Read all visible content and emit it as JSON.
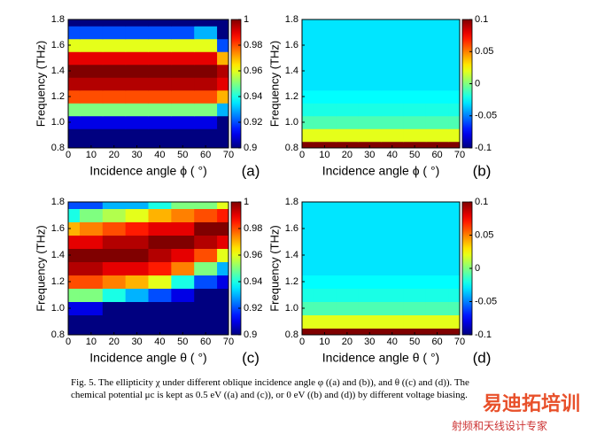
{
  "chart_data": [
    {
      "type": "heatmap",
      "panel": "(a)",
      "xlabel": "Incidence angle ϕ ( °)",
      "ylabel": "Frequency (THz)",
      "colormap": "jet",
      "x": [
        0,
        10,
        20,
        30,
        40,
        50,
        60,
        70
      ],
      "y": [
        0.8,
        0.9,
        1.0,
        1.1,
        1.2,
        1.3,
        1.4,
        1.5,
        1.6,
        1.7,
        1.8
      ],
      "z": [
        [
          0.9,
          0.9,
          0.9,
          0.9,
          0.9,
          0.9,
          0.9,
          0.9
        ],
        [
          0.9,
          0.9,
          0.9,
          0.9,
          0.9,
          0.9,
          0.9,
          0.9
        ],
        [
          0.91,
          0.91,
          0.91,
          0.91,
          0.91,
          0.91,
          0.91,
          0.9
        ],
        [
          0.95,
          0.95,
          0.95,
          0.95,
          0.95,
          0.95,
          0.95,
          0.93
        ],
        [
          0.98,
          0.98,
          0.98,
          0.98,
          0.98,
          0.98,
          0.98,
          0.97
        ],
        [
          0.995,
          0.995,
          0.995,
          0.995,
          0.995,
          0.995,
          0.995,
          0.99
        ],
        [
          1,
          1,
          1,
          1,
          1,
          1,
          1,
          0.995
        ],
        [
          0.99,
          0.99,
          0.99,
          0.99,
          0.99,
          0.99,
          0.99,
          0.97
        ],
        [
          0.96,
          0.96,
          0.96,
          0.96,
          0.96,
          0.96,
          0.96,
          0.92
        ],
        [
          0.92,
          0.92,
          0.92,
          0.92,
          0.92,
          0.92,
          0.93,
          0.9
        ],
        [
          0.9,
          0.9,
          0.9,
          0.9,
          0.9,
          0.9,
          0.9,
          0.9
        ]
      ],
      "xlim": [
        0,
        70
      ],
      "ylim": [
        0.8,
        1.8
      ],
      "xticks": [
        0,
        10,
        20,
        30,
        40,
        50,
        60,
        70
      ],
      "yticks": [
        0.8,
        {
          "value": 1,
          "label": "1.0"
        },
        1.2,
        1.4,
        1.6,
        1.8
      ],
      "clim": [
        0.9,
        1
      ],
      "cticks": [
        0.9,
        0.92,
        0.94,
        0.96,
        0.98,
        1
      ]
    },
    {
      "type": "heatmap",
      "panel": "(b)",
      "xlabel": "Incidence angle ϕ ( °)",
      "ylabel": "Frequency (THz)",
      "colormap": "jet",
      "x": [
        0,
        10,
        20,
        30,
        40,
        50,
        60,
        70
      ],
      "y": [
        0.8,
        0.9,
        1.0,
        1.1,
        1.2,
        1.3,
        1.4,
        1.5,
        1.6,
        1.7,
        1.8
      ],
      "z": [
        [
          0.1,
          0.1,
          0.1,
          0.1,
          0.1,
          0.1,
          0.1,
          0.1
        ],
        [
          0.02,
          0.02,
          0.02,
          0.02,
          0.02,
          0.02,
          0.02,
          0.02
        ],
        [
          -0.01,
          -0.01,
          -0.01,
          -0.01,
          -0.01,
          -0.01,
          -0.01,
          -0.01
        ],
        [
          -0.02,
          -0.02,
          -0.02,
          -0.02,
          -0.02,
          -0.02,
          -0.02,
          -0.02
        ],
        [
          -0.025,
          -0.025,
          -0.025,
          -0.025,
          -0.025,
          -0.025,
          -0.025,
          -0.025
        ],
        [
          -0.03,
          -0.03,
          -0.03,
          -0.03,
          -0.03,
          -0.03,
          -0.03,
          -0.03
        ],
        [
          -0.03,
          -0.03,
          -0.03,
          -0.03,
          -0.03,
          -0.03,
          -0.03,
          -0.03
        ],
        [
          -0.03,
          -0.03,
          -0.03,
          -0.03,
          -0.03,
          -0.03,
          -0.03,
          -0.03
        ],
        [
          -0.03,
          -0.03,
          -0.03,
          -0.03,
          -0.03,
          -0.03,
          -0.03,
          -0.03
        ],
        [
          -0.03,
          -0.03,
          -0.03,
          -0.03,
          -0.03,
          -0.03,
          -0.03,
          -0.03
        ],
        [
          -0.03,
          -0.03,
          -0.03,
          -0.03,
          -0.03,
          -0.03,
          -0.03,
          -0.03
        ]
      ],
      "xlim": [
        0,
        70
      ],
      "ylim": [
        0.8,
        1.8
      ],
      "xticks": [
        0,
        10,
        20,
        30,
        40,
        50,
        60,
        70
      ],
      "yticks": [
        0.8,
        {
          "value": 1,
          "label": "1.0"
        },
        1.2,
        1.4,
        1.6,
        1.8
      ],
      "clim": [
        -0.1,
        0.1
      ],
      "cticks": [
        -0.1,
        -0.05,
        0,
        0.05,
        0.1
      ]
    },
    {
      "type": "heatmap",
      "panel": "(c)",
      "xlabel": "Incidence angle θ ( °)",
      "ylabel": "Frequency (THz)",
      "colormap": "jet",
      "x": [
        0,
        10,
        20,
        30,
        40,
        50,
        60,
        70
      ],
      "y": [
        0.8,
        0.9,
        1.0,
        1.1,
        1.2,
        1.3,
        1.4,
        1.5,
        1.6,
        1.7,
        1.8
      ],
      "z": [
        [
          0.9,
          0.9,
          0.9,
          0.9,
          0.9,
          0.9,
          0.9,
          0.9
        ],
        [
          0.9,
          0.9,
          0.9,
          0.9,
          0.9,
          0.9,
          0.9,
          0.9
        ],
        [
          0.91,
          0.91,
          0.9,
          0.9,
          0.9,
          0.9,
          0.9,
          0.9
        ],
        [
          0.95,
          0.95,
          0.94,
          0.93,
          0.92,
          0.91,
          0.9,
          0.9
        ],
        [
          0.98,
          0.98,
          0.975,
          0.97,
          0.96,
          0.94,
          0.92,
          0.91
        ],
        [
          0.995,
          0.995,
          0.99,
          0.99,
          0.985,
          0.975,
          0.95,
          0.93
        ],
        [
          1,
          1,
          1,
          1,
          0.995,
          0.99,
          0.98,
          0.96
        ],
        [
          0.99,
          0.99,
          0.995,
          0.995,
          1,
          1,
          0.995,
          0.99
        ],
        [
          0.97,
          0.975,
          0.98,
          0.985,
          0.99,
          0.99,
          1,
          1
        ],
        [
          0.94,
          0.95,
          0.955,
          0.96,
          0.97,
          0.975,
          0.98,
          0.985
        ],
        [
          0.92,
          0.92,
          0.93,
          0.93,
          0.94,
          0.95,
          0.95,
          0.96
        ]
      ],
      "xlim": [
        0,
        70
      ],
      "ylim": [
        0.8,
        1.8
      ],
      "xticks": [
        0,
        10,
        20,
        30,
        40,
        50,
        60,
        70
      ],
      "yticks": [
        0.8,
        {
          "value": 1,
          "label": "1.0"
        },
        1.2,
        1.4,
        1.6,
        1.8
      ],
      "clim": [
        0.9,
        1
      ],
      "cticks": [
        0.9,
        0.92,
        0.94,
        0.96,
        0.98,
        1
      ]
    },
    {
      "type": "heatmap",
      "panel": "(d)",
      "xlabel": "Incidence angle θ ( °)",
      "ylabel": "Frequency (THz)",
      "colormap": "jet",
      "x": [
        0,
        10,
        20,
        30,
        40,
        50,
        60,
        70
      ],
      "y": [
        0.8,
        0.9,
        1.0,
        1.1,
        1.2,
        1.3,
        1.4,
        1.5,
        1.6,
        1.7,
        1.8
      ],
      "z": [
        [
          0.1,
          0.1,
          0.1,
          0.1,
          0.1,
          0.1,
          0.1,
          0.1
        ],
        [
          0.02,
          0.02,
          0.02,
          0.02,
          0.02,
          0.02,
          0.02,
          0.02
        ],
        [
          -0.01,
          -0.01,
          -0.01,
          -0.01,
          -0.01,
          -0.01,
          -0.01,
          -0.01
        ],
        [
          -0.02,
          -0.02,
          -0.02,
          -0.02,
          -0.02,
          -0.02,
          -0.02,
          -0.02
        ],
        [
          -0.025,
          -0.025,
          -0.025,
          -0.025,
          -0.025,
          -0.025,
          -0.025,
          -0.025
        ],
        [
          -0.03,
          -0.03,
          -0.03,
          -0.03,
          -0.03,
          -0.03,
          -0.03,
          -0.03
        ],
        [
          -0.03,
          -0.03,
          -0.03,
          -0.03,
          -0.03,
          -0.03,
          -0.03,
          -0.03
        ],
        [
          -0.03,
          -0.03,
          -0.03,
          -0.03,
          -0.03,
          -0.03,
          -0.03,
          -0.03
        ],
        [
          -0.03,
          -0.03,
          -0.03,
          -0.03,
          -0.03,
          -0.03,
          -0.03,
          -0.03
        ],
        [
          -0.03,
          -0.03,
          -0.03,
          -0.03,
          -0.03,
          -0.03,
          -0.03,
          -0.03
        ],
        [
          -0.03,
          -0.03,
          -0.03,
          -0.03,
          -0.03,
          -0.03,
          -0.03,
          -0.03
        ]
      ],
      "xlim": [
        0,
        70
      ],
      "ylim": [
        0.8,
        1.8
      ],
      "xticks": [
        0,
        10,
        20,
        30,
        40,
        50,
        60,
        70
      ],
      "yticks": [
        0.8,
        {
          "value": 1,
          "label": "1.0"
        },
        1.2,
        1.4,
        1.6,
        1.8
      ],
      "clim": [
        -0.1,
        0.1
      ],
      "cticks": [
        -0.1,
        -0.05,
        0,
        0.05,
        0.1
      ]
    }
  ],
  "caption": "Fig. 5. The ellipticity χ under different oblique incidence angle φ ((a) and (b)), and θ ((c) and (d)). The chemical potential μc is kept as 0.5 eV ((a) and (c)), or 0 eV ((b) and (d)) by different voltage biasing.",
  "watermark": {
    "logo": "易迪拓培训",
    "slogan": "射频和天线设计专家"
  }
}
